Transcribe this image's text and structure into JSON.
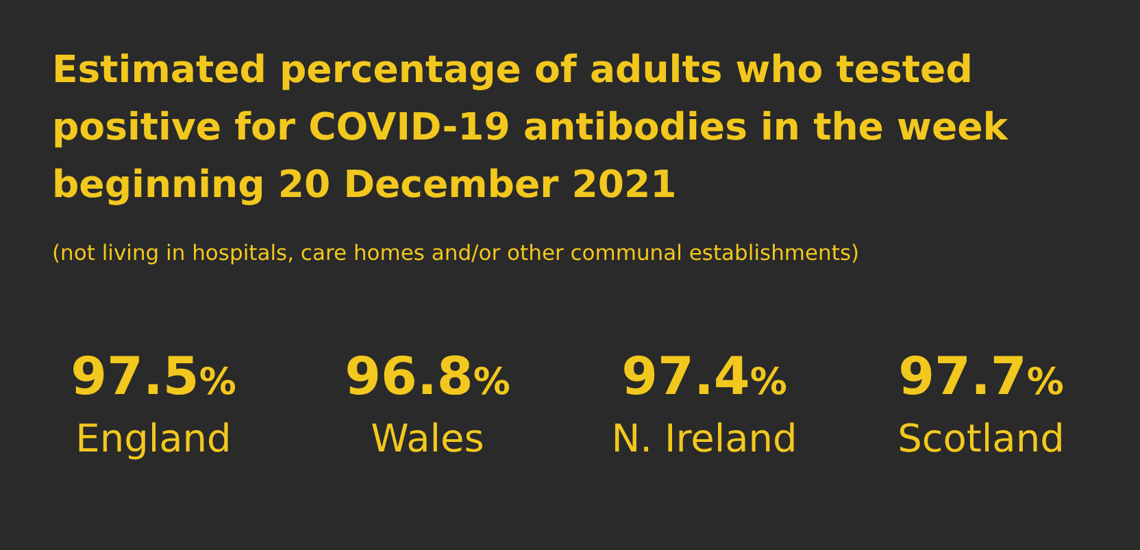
{
  "chart_data": {
    "type": "other",
    "title": "Estimated percentage of adults who tested positive for COVID-19 antibodies in the week beginning 20 December 2021",
    "subtitle": "(not living in hospitals, care homes and/or other communal establishments)",
    "categories": [
      "England",
      "Wales",
      "N. Ireland",
      "Scotland"
    ],
    "values": [
      97.5,
      96.8,
      97.4,
      97.7
    ],
    "value_labels": [
      "97.5%",
      "96.8%",
      "97.4%",
      "97.7%"
    ],
    "color": "#f2c81e"
  }
}
